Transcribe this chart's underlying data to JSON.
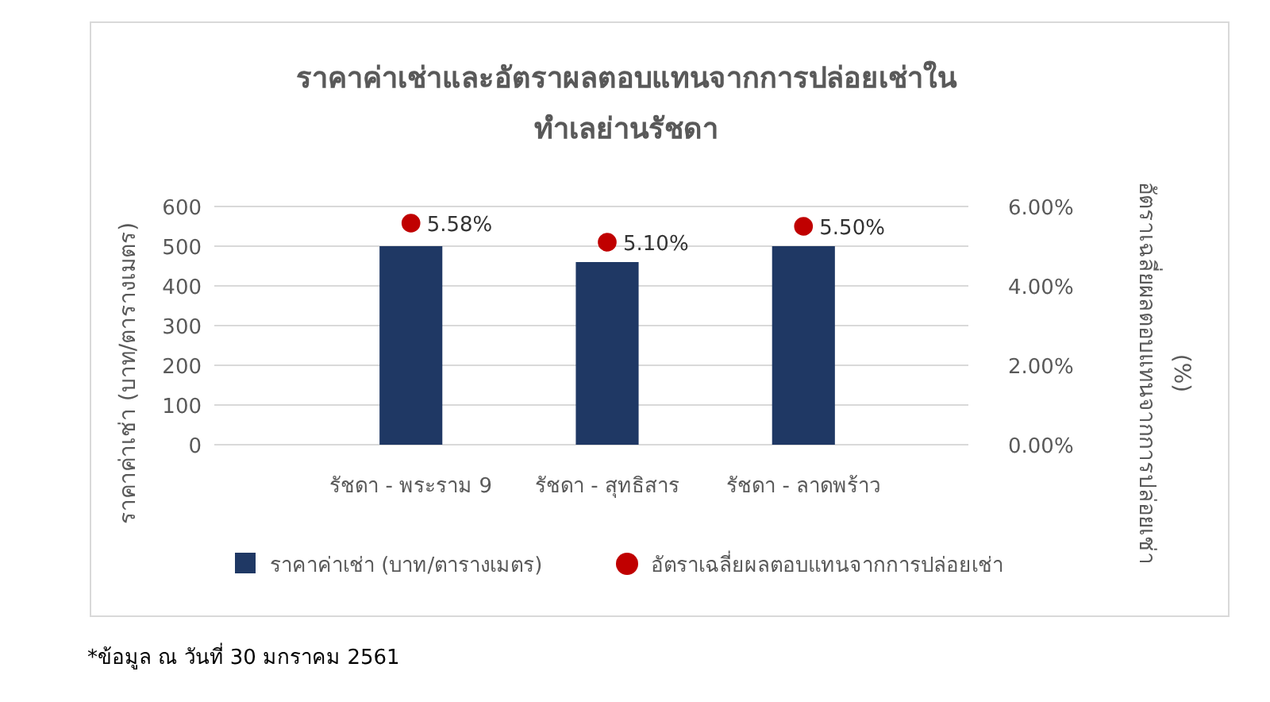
{
  "chart_data": {
    "type": "bar",
    "title": "ราคาค่าเช่าและอัตราผลตอบแทนจากการปล่อยเช่าในทำเลย่านรัชดา",
    "categories": [
      "รัชดา - พระราม 9",
      "รัชดา - สุทธิสาร",
      "รัชดา - ลาดพร้าว"
    ],
    "series": [
      {
        "name": "ราคาค่าเช่า (บาท/ตารางเมตร)",
        "color": "#1f3864",
        "values": [
          500,
          460,
          500
        ]
      },
      {
        "name": "อัตราเฉลี่ยผลตอบแทนจากการปล่อยเช่า",
        "type": "scatter",
        "axis": "y2",
        "marker": "circle",
        "color": "#c00000",
        "values": [
          5.58,
          5.1,
          5.5
        ],
        "value_labels": [
          "5.58%",
          "5.10%",
          "5.50%"
        ]
      }
    ],
    "ylabel": "ราคาค่าเช่า (บาท/ตารางเมตร)",
    "y2label": "อัตราเฉลี่ยผลตอบแทนจากการปล่อยเช่า (%)",
    "ylim": [
      0,
      600
    ],
    "yticks": [
      0,
      100,
      200,
      300,
      400,
      500,
      600
    ],
    "y2lim": [
      0,
      6
    ],
    "y2ticks": [
      {
        "value": 0,
        "label": "0.00%"
      },
      {
        "value": 2,
        "label": "2.00%"
      },
      {
        "value": 4,
        "label": "4.00%"
      },
      {
        "value": 6,
        "label": "6.00%"
      }
    ],
    "grid": "y",
    "legend": "bottom",
    "annotations": [
      "*ข้อมูล ณ วันที่ 30 มกราคม 2561"
    ]
  }
}
